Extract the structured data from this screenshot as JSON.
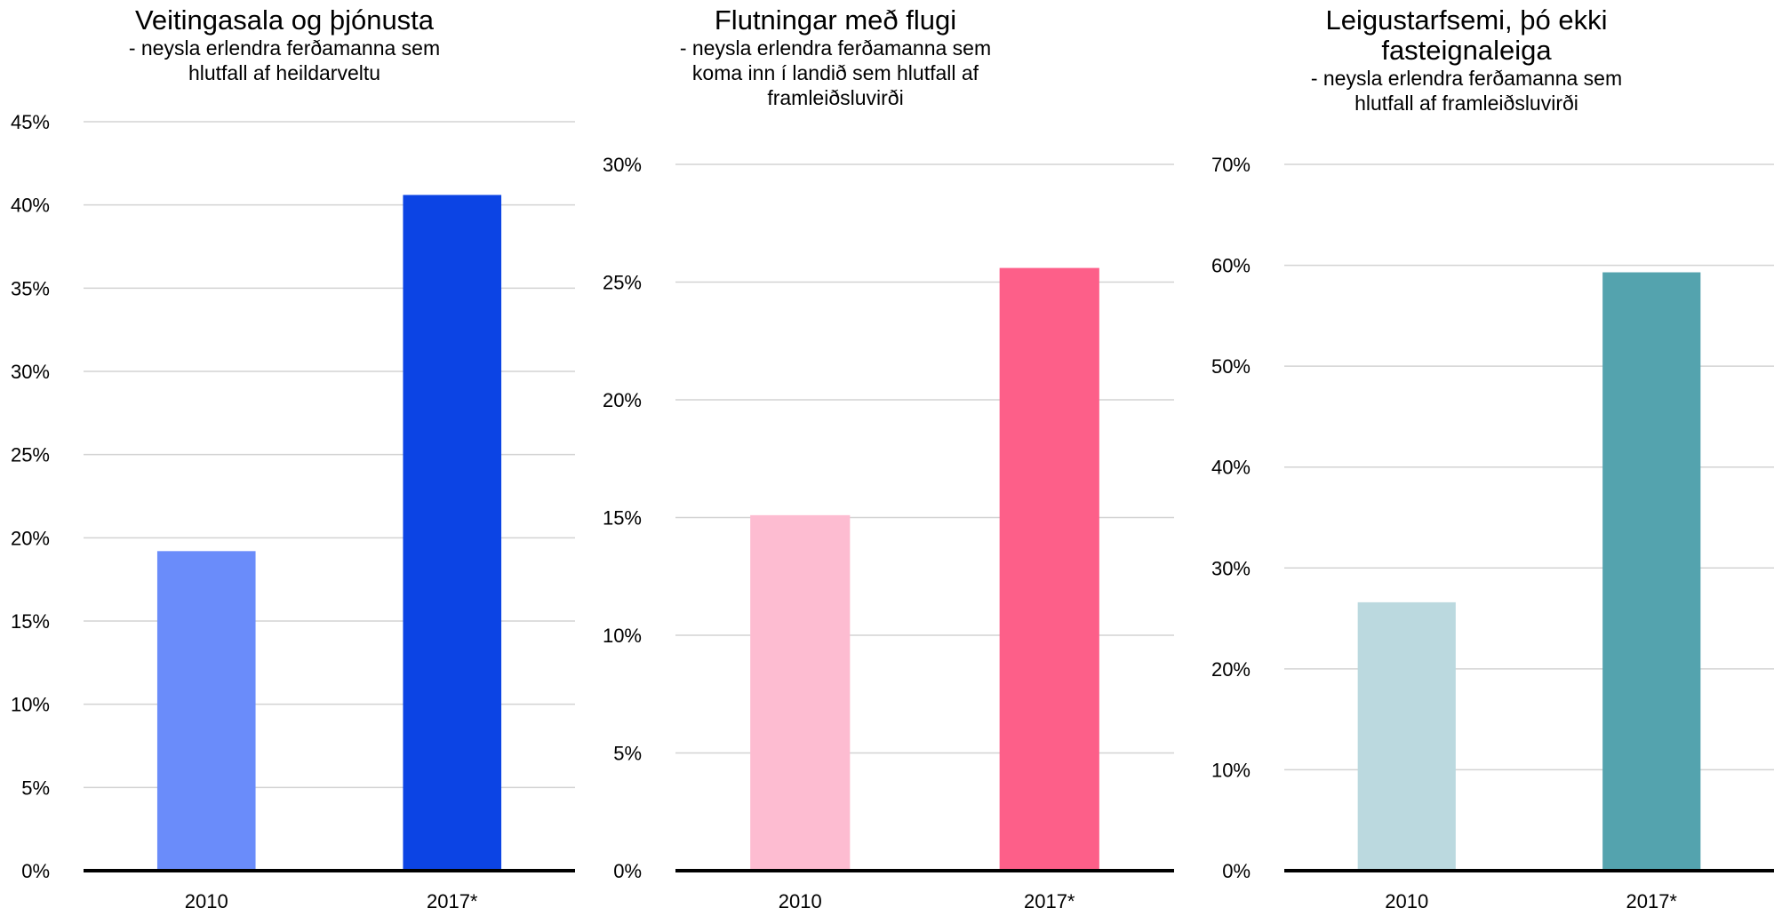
{
  "chart_data": [
    {
      "type": "bar",
      "title": "Veitingasala og þjónusta",
      "subtitle": "- neysla erlendra ferðamanna sem hlutfall af heildarveltu",
      "categories": [
        "2010",
        "2017*"
      ],
      "values": [
        19.2,
        40.6
      ],
      "colors": [
        "#6a8cfa",
        "#0c44e4"
      ],
      "ylim": [
        0,
        45
      ],
      "yticks": [
        0,
        5,
        10,
        15,
        20,
        25,
        30,
        35,
        40,
        45
      ],
      "ytick_labels": [
        "0%",
        "5%",
        "10%",
        "15%",
        "20%",
        "25%",
        "30%",
        "35%",
        "40%",
        "45%"
      ],
      "grid": true
    },
    {
      "type": "bar",
      "title": "Flutningar með flugi",
      "subtitle": "- neysla erlendra ferðamanna sem koma inn í landið sem hlutfall af framleiðsluvirði",
      "categories": [
        "2010",
        "2017*"
      ],
      "values": [
        15.1,
        25.6
      ],
      "colors": [
        "#fdbcd1",
        "#fd5f89"
      ],
      "ylim": [
        0,
        30
      ],
      "yticks": [
        0,
        5,
        10,
        15,
        20,
        25,
        30
      ],
      "ytick_labels": [
        "0%",
        "5%",
        "10%",
        "15%",
        "20%",
        "25%",
        "30%"
      ],
      "grid": true
    },
    {
      "type": "bar",
      "title": "Leigustarfsemi, þó ekki fasteignaleiga",
      "subtitle": "- neysla erlendra ferðamanna sem hlutfall af framleiðsluvirði",
      "categories": [
        "2010",
        "2017*"
      ],
      "values": [
        26.6,
        59.3
      ],
      "colors": [
        "#bbd9df",
        "#54a3ae"
      ],
      "ylim": [
        0,
        70
      ],
      "yticks": [
        0,
        10,
        20,
        30,
        40,
        50,
        60,
        70
      ],
      "ytick_labels": [
        "0%",
        "10%",
        "20%",
        "30%",
        "40%",
        "50%",
        "60%",
        "70%"
      ],
      "grid": true
    }
  ]
}
